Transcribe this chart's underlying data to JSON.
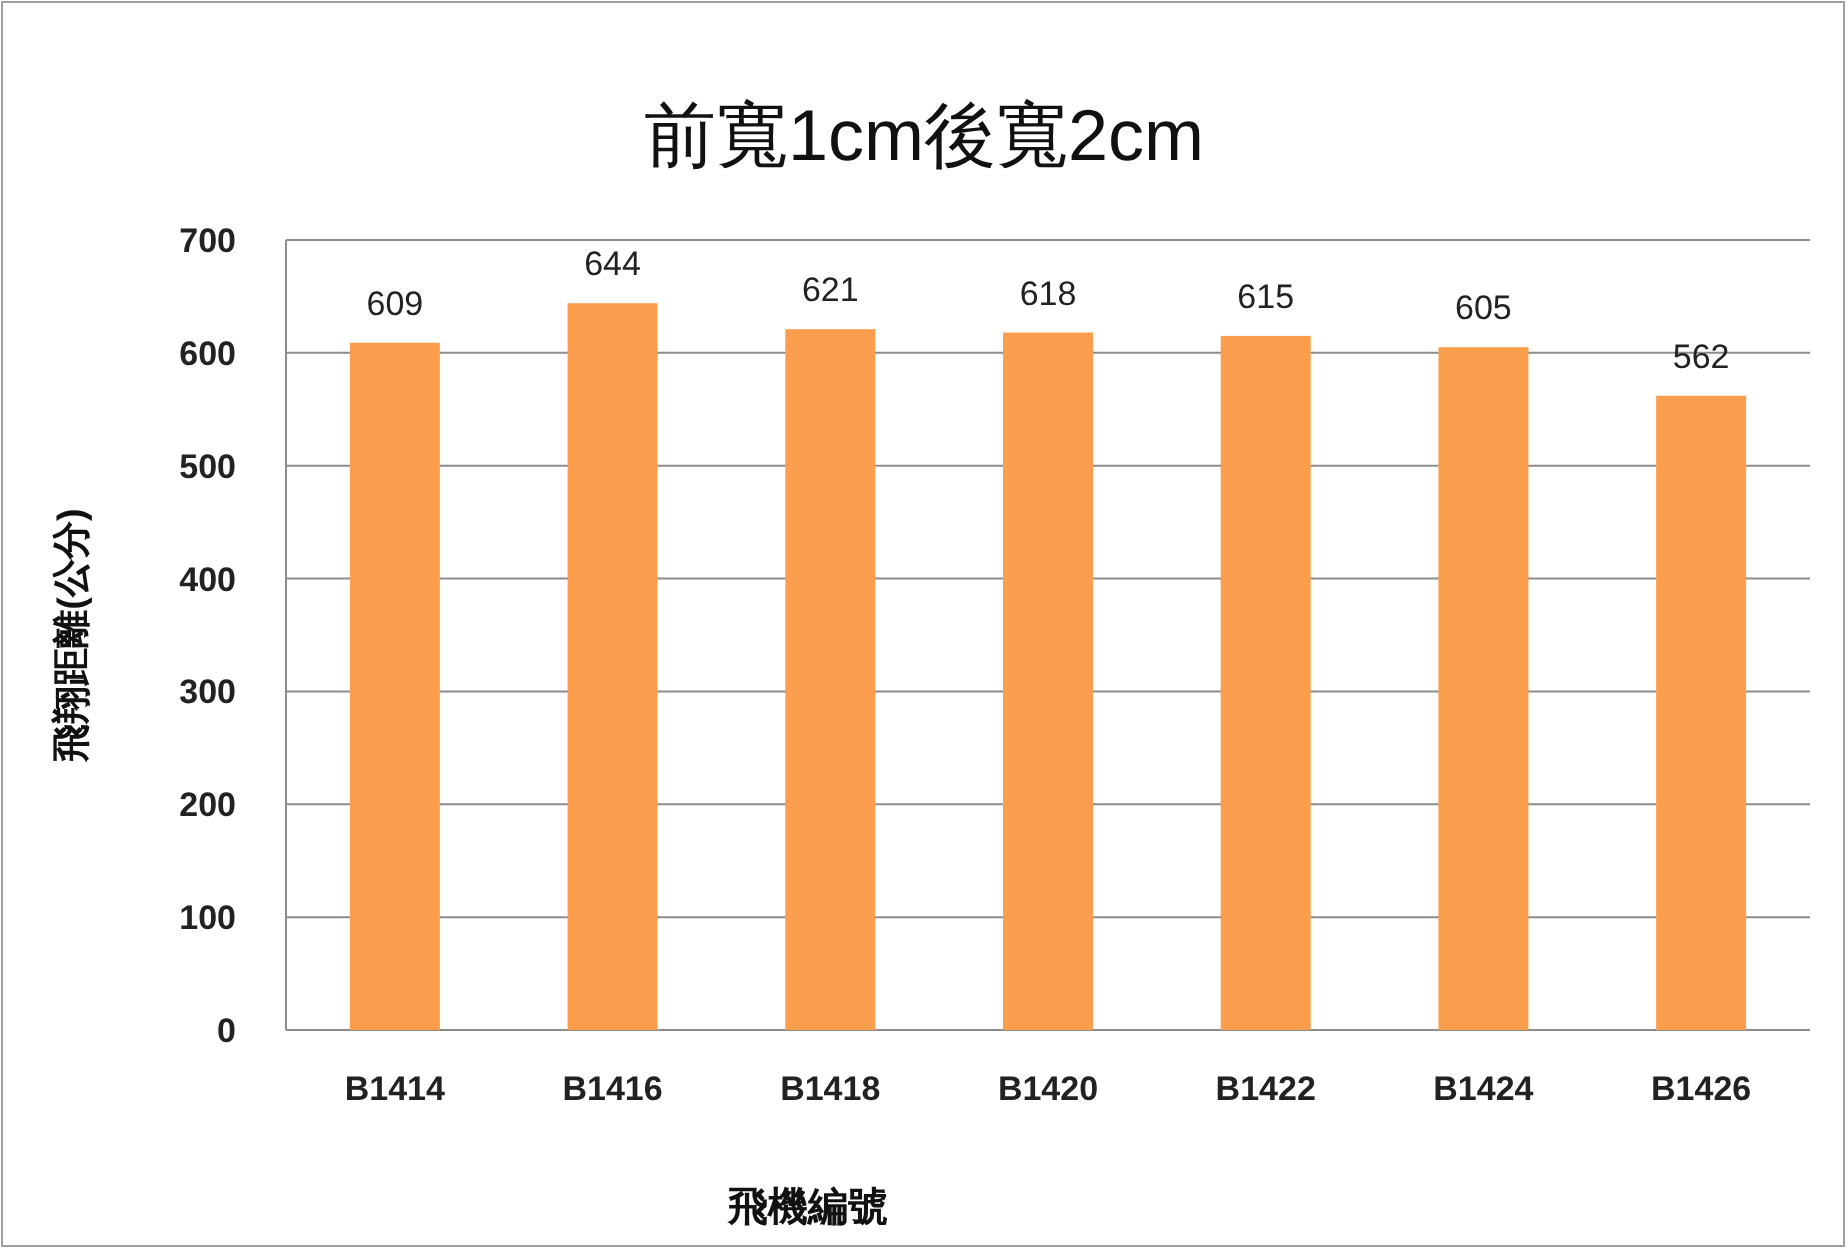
{
  "chart_data": {
    "type": "bar",
    "title": "前寬1cm後寬2cm",
    "xlabel": "飛機編號",
    "ylabel": "飛翔距離(公分)",
    "categories": [
      "B1414",
      "B1416",
      "B1418",
      "B1420",
      "B1422",
      "B1424",
      "B1426"
    ],
    "values": [
      609,
      644,
      621,
      618,
      615,
      605,
      562
    ],
    "color": "#fa9e4e",
    "ylim": [
      0,
      700
    ],
    "yticks": [
      0,
      100,
      200,
      300,
      400,
      500,
      600,
      700
    ],
    "grid": "y",
    "data_labels": true
  }
}
